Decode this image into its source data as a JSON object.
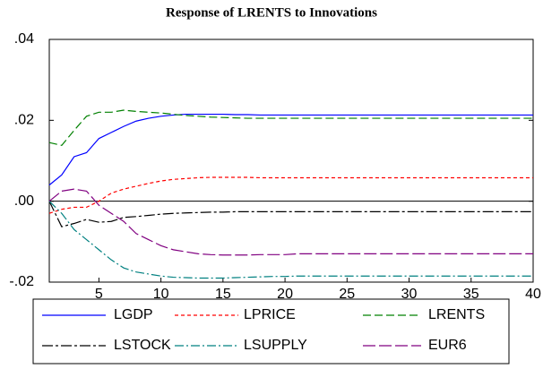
{
  "chart_data": {
    "type": "line",
    "title": "Response of LRENTS to Innovations",
    "x": [
      1,
      2,
      3,
      4,
      5,
      6,
      7,
      8,
      9,
      10,
      11,
      12,
      13,
      14,
      15,
      16,
      17,
      18,
      19,
      20,
      21,
      22,
      23,
      24,
      25,
      26,
      27,
      28,
      29,
      30,
      31,
      32,
      33,
      34,
      35,
      36,
      37,
      38,
      39,
      40
    ],
    "xlim": [
      1,
      40
    ],
    "xticks": [
      5,
      10,
      15,
      20,
      25,
      30,
      35,
      40
    ],
    "ylim": [
      -0.02,
      0.04
    ],
    "yticks": [
      {
        "value": -0.02,
        "label": "-.02"
      },
      {
        "value": 0,
        "label": ".00"
      },
      {
        "value": 0.02,
        "label": ".02"
      },
      {
        "value": 0.04,
        "label": ".04"
      }
    ],
    "zero_line": true,
    "series": [
      {
        "name": "LGDP",
        "color": "#0000ff",
        "dash": "none",
        "values": [
          0.004,
          0.0065,
          0.011,
          0.012,
          0.0155,
          0.017,
          0.0185,
          0.0198,
          0.0205,
          0.021,
          0.0213,
          0.0215,
          0.0215,
          0.0215,
          0.0215,
          0.0214,
          0.0214,
          0.0213,
          0.0213,
          0.0213,
          0.0213,
          0.0213,
          0.0213,
          0.0213,
          0.0213,
          0.0213,
          0.0213,
          0.0213,
          0.0213,
          0.0213,
          0.0213,
          0.0213,
          0.0213,
          0.0213,
          0.0213,
          0.0213,
          0.0213,
          0.0213,
          0.0213,
          0.0213
        ]
      },
      {
        "name": "LPRICE",
        "color": "#ff0000",
        "dash": "4,3",
        "values": [
          -0.003,
          -0.002,
          -0.0015,
          -0.0015,
          0.0,
          0.002,
          0.003,
          0.0037,
          0.0044,
          0.005,
          0.0054,
          0.0056,
          0.0058,
          0.0059,
          0.0059,
          0.0059,
          0.0059,
          0.0058,
          0.0058,
          0.0058,
          0.0058,
          0.0058,
          0.0058,
          0.0058,
          0.0058,
          0.0058,
          0.0058,
          0.0058,
          0.0058,
          0.0058,
          0.0058,
          0.0058,
          0.0058,
          0.0058,
          0.0058,
          0.0058,
          0.0058,
          0.0058,
          0.0058,
          0.0058
        ]
      },
      {
        "name": "LRENTS",
        "color": "#008000",
        "dash": "9,4",
        "values": [
          0.0145,
          0.0138,
          0.0175,
          0.021,
          0.022,
          0.022,
          0.0225,
          0.0222,
          0.022,
          0.0218,
          0.0215,
          0.0212,
          0.021,
          0.0208,
          0.0207,
          0.0206,
          0.0205,
          0.0205,
          0.0205,
          0.0205,
          0.0205,
          0.0205,
          0.0205,
          0.0205,
          0.0205,
          0.0205,
          0.0205,
          0.0205,
          0.0205,
          0.0205,
          0.0205,
          0.0205,
          0.0205,
          0.0205,
          0.0205,
          0.0205,
          0.0205,
          0.0205,
          0.0205,
          0.0205
        ]
      },
      {
        "name": "LSTOCK",
        "color": "#000000",
        "dash": "12,3,3,3",
        "values": [
          0.0,
          -0.0063,
          -0.0055,
          -0.0045,
          -0.0052,
          -0.005,
          -0.004,
          -0.0038,
          -0.0035,
          -0.0032,
          -0.003,
          -0.0029,
          -0.0028,
          -0.0027,
          -0.0027,
          -0.0026,
          -0.0026,
          -0.0026,
          -0.0026,
          -0.0026,
          -0.0026,
          -0.0026,
          -0.0026,
          -0.0026,
          -0.0026,
          -0.0026,
          -0.0026,
          -0.0026,
          -0.0026,
          -0.0026,
          -0.0026,
          -0.0026,
          -0.0026,
          -0.0026,
          -0.0026,
          -0.0026,
          -0.0026,
          -0.0026,
          -0.0026,
          -0.0026
        ]
      },
      {
        "name": "LSUPPLY",
        "color": "#008080",
        "dash": "10,3,2,3",
        "values": [
          0.0,
          -0.003,
          -0.007,
          -0.0095,
          -0.012,
          -0.0145,
          -0.0165,
          -0.0175,
          -0.018,
          -0.0185,
          -0.0188,
          -0.0189,
          -0.019,
          -0.019,
          -0.019,
          -0.0189,
          -0.0188,
          -0.0187,
          -0.0186,
          -0.0186,
          -0.0185,
          -0.0185,
          -0.0185,
          -0.0185,
          -0.0185,
          -0.0185,
          -0.0185,
          -0.0185,
          -0.0185,
          -0.0185,
          -0.0185,
          -0.0185,
          -0.0185,
          -0.0185,
          -0.0185,
          -0.0185,
          -0.0185,
          -0.0185,
          -0.0185,
          -0.0185
        ]
      },
      {
        "name": "EUR6",
        "color": "#800080",
        "dash": "14,4",
        "values": [
          0.0,
          0.0025,
          0.003,
          0.0025,
          -0.001,
          -0.003,
          -0.005,
          -0.008,
          -0.0095,
          -0.011,
          -0.012,
          -0.0125,
          -0.013,
          -0.0132,
          -0.0133,
          -0.0133,
          -0.0133,
          -0.0132,
          -0.0132,
          -0.0132,
          -0.013,
          -0.013,
          -0.013,
          -0.013,
          -0.013,
          -0.013,
          -0.013,
          -0.013,
          -0.013,
          -0.013,
          -0.013,
          -0.013,
          -0.013,
          -0.013,
          -0.013,
          -0.013,
          -0.013,
          -0.013,
          -0.013,
          -0.013
        ]
      }
    ]
  }
}
